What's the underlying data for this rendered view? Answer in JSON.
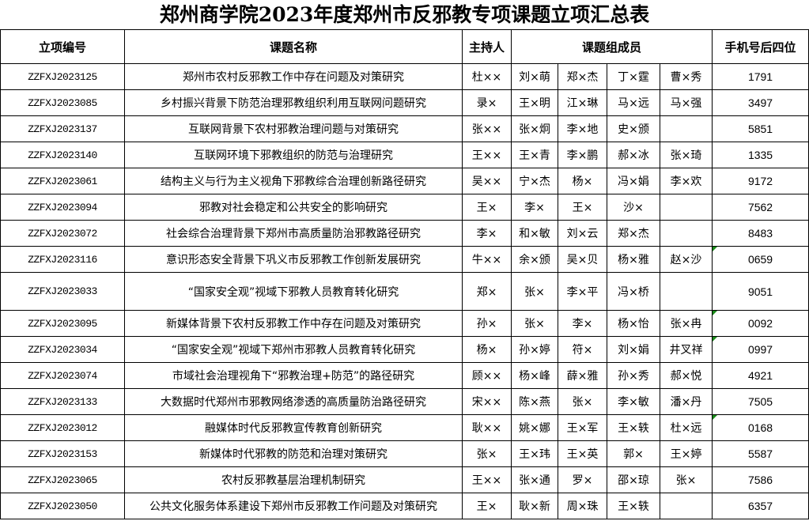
{
  "title": "郑州商学院2023年度郑州市反邪教专项课题立项汇总表",
  "headers": {
    "code": "立项编号",
    "name": "课题名称",
    "host": "主持人",
    "members": "课题组成员",
    "phone": "手机号后四位"
  },
  "flag_color": "#1a8a1a",
  "rows": [
    {
      "code": "ZZFXJ2023125",
      "name": "郑州市农村反邪教工作中存在问题及对策研究",
      "host": "杜××",
      "members": [
        "刘×萌",
        "郑×杰",
        "丁×霆",
        "曹×秀"
      ],
      "phone": "1791"
    },
    {
      "code": "ZZFXJ2023085",
      "name": "乡村振兴背景下防范治理邪教组织利用互联网问题研究",
      "host": "录×",
      "members": [
        "王×明",
        "江×琳",
        "马×远",
        "马×强"
      ],
      "phone": "3497"
    },
    {
      "code": "ZZFXJ2023137",
      "name": "互联网背景下农村邪教治理问题与对策研究",
      "host": "张××",
      "members": [
        "张×炯",
        "李×地",
        "史×颁",
        ""
      ],
      "phone": "5851"
    },
    {
      "code": "ZZFXJ2023140",
      "name": "互联网环境下邪教组织的防范与治理研究",
      "host": "王××",
      "members": [
        "王×青",
        "李×鹏",
        "郝×冰",
        "张×琦"
      ],
      "phone": "1335"
    },
    {
      "code": "ZZFXJ2023061",
      "name": "结构主义与行为主义视角下邪教综合治理创新路径研究",
      "host": "吴××",
      "members": [
        "宁×杰",
        "杨×",
        "冯×娟",
        "李×欢"
      ],
      "phone": "9172"
    },
    {
      "code": "ZZFXJ2023094",
      "name": "邪教对社会稳定和公共安全的影响研究",
      "host": "王×",
      "members": [
        "李×",
        "王×",
        "沙×",
        ""
      ],
      "phone": "7562"
    },
    {
      "code": "ZZFXJ2023072",
      "name": "社会综合治理背景下郑州市高质量防治邪教路径研究",
      "host": "李×",
      "members": [
        "和×敏",
        "刘×云",
        "郑×杰",
        ""
      ],
      "phone": "8483"
    },
    {
      "code": "ZZFXJ2023116",
      "name": "意识形态安全背景下巩义市反邪教工作创新发展研究",
      "host": "牛××",
      "members": [
        "余×颁",
        "吴×贝",
        "杨×雅",
        "赵×沙"
      ],
      "phone": "0659",
      "flag": true
    },
    {
      "code": "ZZFXJ2023033",
      "name": "“国家安全观”视域下邪教人员教育转化研究",
      "host": "郑×",
      "members": [
        "张×",
        "李×平",
        "冯×桥",
        ""
      ],
      "phone": "9051",
      "tall": true
    },
    {
      "code": "ZZFXJ2023095",
      "name": "新媒体背景下农村反邪教工作中存在问题及对策研究",
      "host": "孙×",
      "members": [
        "张×",
        "李×",
        "杨×怡",
        "张×冉"
      ],
      "phone": "0092",
      "flag": true
    },
    {
      "code": "ZZFXJ2023034",
      "name": "“国家安全观”视域下郑州市邪教人员教育转化研究",
      "host": "杨×",
      "members": [
        "孙×婷",
        "符×",
        "刘×娟",
        "井叉祥"
      ],
      "phone": "0997",
      "flag": true
    },
    {
      "code": "ZZFXJ2023074",
      "name": "市域社会治理视角下“邪教治理+防范”的路径研究",
      "host": "顾××",
      "members": [
        "杨×峰",
        "薛×雅",
        "孙×秀",
        "郝×悦"
      ],
      "phone": "4921"
    },
    {
      "code": "ZZFXJ2023133",
      "name": "大数据时代郑州市邪教网络渗透的高质量防治路径研究",
      "host": "宋××",
      "members": [
        "陈×燕",
        "张×",
        "李×敏",
        "潘×丹"
      ],
      "phone": "7505"
    },
    {
      "code": "ZZFXJ2023012",
      "name": "融媒体时代反邪教宣传教育创新研究",
      "host": "耿××",
      "members": [
        "姚×娜",
        "王×军",
        "王×轶",
        "杜×远"
      ],
      "phone": "0168",
      "flag": true
    },
    {
      "code": "ZZFXJ2023153",
      "name": "新媒体时代邪教的防范和治理对策研究",
      "host": "张×",
      "members": [
        "王×玮",
        "王×英",
        "郭×",
        "王×婷"
      ],
      "phone": "5587"
    },
    {
      "code": "ZZFXJ2023065",
      "name": "农村反邪教基层治理机制研究",
      "host": "王××",
      "members": [
        "张×通",
        "罗×",
        "邵×琼",
        "张×"
      ],
      "phone": "7586"
    },
    {
      "code": "ZZFXJ2023050",
      "name": "公共文化服务体系建设下郑州市反邪教工作问题及对策研究",
      "host": "王×",
      "members": [
        "耿×新",
        "周×珠",
        "王×轶",
        ""
      ],
      "phone": "6357"
    }
  ]
}
